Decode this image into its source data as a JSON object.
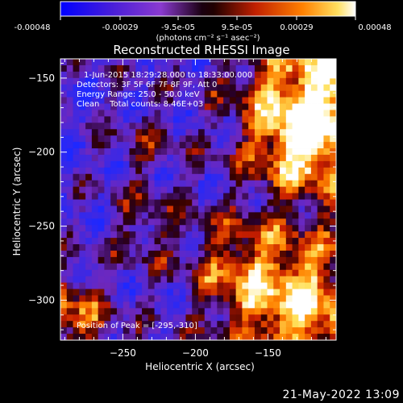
{
  "colorbar": {
    "ticks": [
      "-0.00048",
      "-0.00029",
      "-9.5e-05",
      "9.5e-05",
      "0.00029",
      "0.00048"
    ],
    "units_label": "(photons cm⁻² s⁻¹ asec⁻²)"
  },
  "chart_data": {
    "type": "heatmap",
    "title": "Reconstructed RHESSI Image",
    "xlabel": "Heliocentric X (arcsec)",
    "ylabel": "Heliocentric Y (arcsec)",
    "xlim": [
      -293,
      -103
    ],
    "ylim": [
      -327,
      -137
    ],
    "xticks": [
      -250,
      -200,
      -150
    ],
    "yticks": [
      -150,
      -200,
      -250,
      -300
    ],
    "value_range": [
      -0.00048,
      0.00048
    ],
    "annotations": [
      "1-Jun-2015 18:29:28.000 to 18:33:00.000",
      "Detectors: 3F 5F 6F 7F 8F 9F, Att 0",
      "Energy Range: 25.0 - 50.0 keV",
      "Clean    Total counts: 8.46E+03"
    ],
    "peak_label": "Position of Peak = [-295,-310]",
    "peak_position": [
      -295,
      -310
    ]
  },
  "timestamp": "21-May-2022 13:09"
}
